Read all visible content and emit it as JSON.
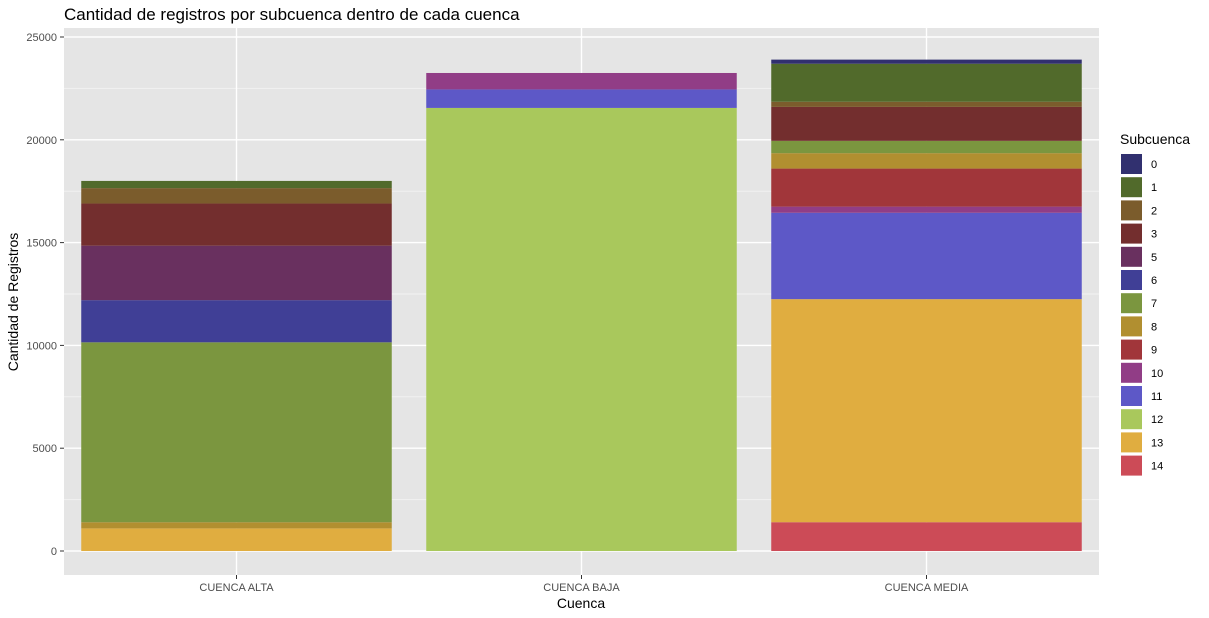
{
  "chart_data": {
    "type": "bar",
    "stacked": true,
    "title": "Cantidad de registros por subcuenca dentro de cada cuenca",
    "xlabel": "Cuenca",
    "ylabel": "Cantidad de Registros",
    "ylim": [
      0,
      25000
    ],
    "yticks": [
      0,
      5000,
      10000,
      15000,
      20000,
      25000
    ],
    "grid": true,
    "background": "#e5e5e5",
    "legend": {
      "title": "Subcuenca",
      "placement": "right"
    },
    "categories": [
      "CUENCA ALTA",
      "CUENCA BAJA",
      "CUENCA MEDIA"
    ],
    "series": [
      {
        "name": "0",
        "color": "#31306f",
        "values": [
          0,
          0,
          200
        ]
      },
      {
        "name": "1",
        "color": "#516a2b",
        "values": [
          350,
          0,
          1850
        ]
      },
      {
        "name": "2",
        "color": "#7b5c2c",
        "values": [
          750,
          0,
          250
        ]
      },
      {
        "name": "3",
        "color": "#732e2e",
        "values": [
          2050,
          0,
          1650
        ]
      },
      {
        "name": "5",
        "color": "#69305f",
        "values": [
          2650,
          0,
          0
        ]
      },
      {
        "name": "6",
        "color": "#403f96",
        "values": [
          2050,
          0,
          0
        ]
      },
      {
        "name": "7",
        "color": "#7b963f",
        "values": [
          8750,
          0,
          600
        ]
      },
      {
        "name": "8",
        "color": "#b18f30",
        "values": [
          300,
          0,
          750
        ]
      },
      {
        "name": "9",
        "color": "#a1363a",
        "values": [
          0,
          0,
          1850
        ]
      },
      {
        "name": "10",
        "color": "#913d86",
        "values": [
          0,
          800,
          300
        ]
      },
      {
        "name": "11",
        "color": "#5d58c7",
        "values": [
          0,
          900,
          4200
        ]
      },
      {
        "name": "12",
        "color": "#a9c85c",
        "values": [
          0,
          21550,
          0
        ]
      },
      {
        "name": "13",
        "color": "#e0ad40",
        "values": [
          1100,
          0,
          10850
        ]
      },
      {
        "name": "14",
        "color": "#cc4b57",
        "values": [
          0,
          0,
          1400
        ]
      }
    ]
  }
}
